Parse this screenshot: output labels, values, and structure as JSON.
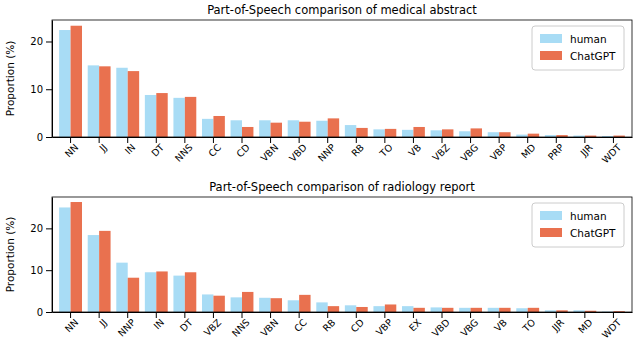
{
  "chart_data": [
    {
      "type": "bar",
      "title": "Part-of-Speech comparison of medical abstract",
      "y_label": "Proportion (%)",
      "categories": [
        "NN",
        "JJ",
        "IN",
        "DT",
        "NNS",
        "CC",
        "CD",
        "VBN",
        "VBD",
        "NNP",
        "RB",
        "TO",
        "VB",
        "VBZ",
        "VBG",
        "VBP",
        "MD",
        "PRP",
        "JJR",
        "WDT"
      ],
      "series": [
        {
          "name": "human",
          "color": "#a8dcf5",
          "values": [
            22.4,
            15.0,
            14.5,
            8.8,
            8.2,
            3.8,
            3.5,
            3.5,
            3.5,
            3.4,
            2.5,
            1.6,
            1.5,
            1.4,
            1.2,
            1.0,
            0.5,
            0.4,
            0.3,
            0.2
          ]
        },
        {
          "name": "ChatGPT",
          "color": "#e9714f",
          "values": [
            23.3,
            14.8,
            13.8,
            9.2,
            8.4,
            4.4,
            2.1,
            3.0,
            3.2,
            3.9,
            1.9,
            1.7,
            2.1,
            1.6,
            1.8,
            1.0,
            0.7,
            0.4,
            0.3,
            0.3
          ]
        }
      ],
      "ylim": [
        0,
        24.5
      ],
      "yticks": [
        0,
        10,
        20
      ],
      "legend": "upper right",
      "grid": false
    },
    {
      "type": "bar",
      "title": "Part-of-Speech comparison of radiology report",
      "y_label": "Proportion (%)",
      "categories": [
        "NN",
        "JJ",
        "NNP",
        "IN",
        "DT",
        "VBZ",
        "NNS",
        "VBN",
        "CC",
        "RB",
        "CD",
        "VBP",
        "EX",
        "VBD",
        "VBG",
        "VB",
        "TO",
        "JJR",
        "MD",
        "WDT"
      ],
      "series": [
        {
          "name": "human",
          "color": "#a8dcf5",
          "values": [
            25.0,
            18.4,
            11.8,
            9.5,
            8.7,
            4.2,
            3.5,
            3.4,
            2.8,
            2.3,
            1.6,
            1.4,
            1.4,
            1.1,
            1.0,
            1.0,
            0.9,
            0.4,
            0.4,
            0.1
          ]
        },
        {
          "name": "ChatGPT",
          "color": "#e9714f",
          "values": [
            26.3,
            19.4,
            8.2,
            9.7,
            9.5,
            3.9,
            4.8,
            3.3,
            4.1,
            1.4,
            1.2,
            1.8,
            1.0,
            1.0,
            1.0,
            1.0,
            1.0,
            0.4,
            0.3,
            0.2
          ]
        }
      ],
      "ylim": [
        0,
        27.5
      ],
      "yticks": [
        0,
        10,
        20
      ],
      "legend": "upper right",
      "grid": false
    }
  ]
}
